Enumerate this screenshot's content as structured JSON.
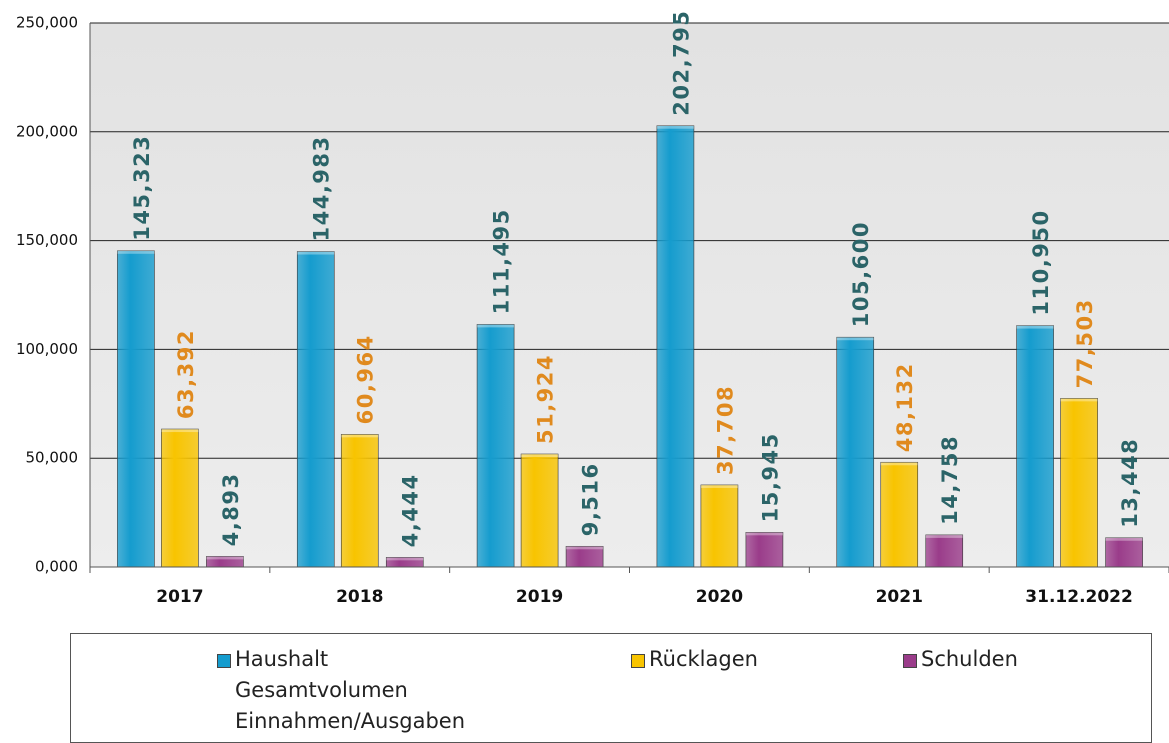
{
  "chart_data": {
    "type": "bar",
    "categories": [
      "2017",
      "2018",
      "2019",
      "2020",
      "2021",
      "31.12.2022"
    ],
    "series": [
      {
        "name": "Haushalt Gesamtvolumen Einnahmen/Ausgaben",
        "color": "#159cce",
        "label_color": "#2b6468",
        "values": [
          145323,
          144983,
          111495,
          202795,
          105600,
          110950
        ],
        "value_labels": [
          "145,323",
          "144,983",
          "111,495",
          "202,795",
          "105,600",
          "110,950"
        ]
      },
      {
        "name": "Rücklagen",
        "color": "#f8c400",
        "label_color": "#e08a1e",
        "values": [
          63392,
          60964,
          51924,
          37708,
          48132,
          77503
        ],
        "value_labels": [
          "63,392",
          "60,964",
          "51,924",
          "37,708",
          "48,132",
          "77,503"
        ]
      },
      {
        "name": "Schulden",
        "color": "#9a3c8a",
        "label_color": "#2b6468",
        "values": [
          4893,
          4444,
          9516,
          15945,
          14758,
          13448
        ],
        "value_labels": [
          "4,893",
          "4,444",
          "9,516",
          "15,945",
          "14,758",
          "13,448"
        ]
      }
    ],
    "ylim": [
      0,
      250000
    ],
    "yticks": [
      {
        "value": 0,
        "label": "0,000"
      },
      {
        "value": 50000,
        "label": "50,000"
      },
      {
        "value": 100000,
        "label": "100,000"
      },
      {
        "value": 150000,
        "label": "150,000"
      },
      {
        "value": 200000,
        "label": "200,000"
      },
      {
        "value": 250000,
        "label": "250,000"
      }
    ],
    "grid": true,
    "legend": "bottom"
  }
}
